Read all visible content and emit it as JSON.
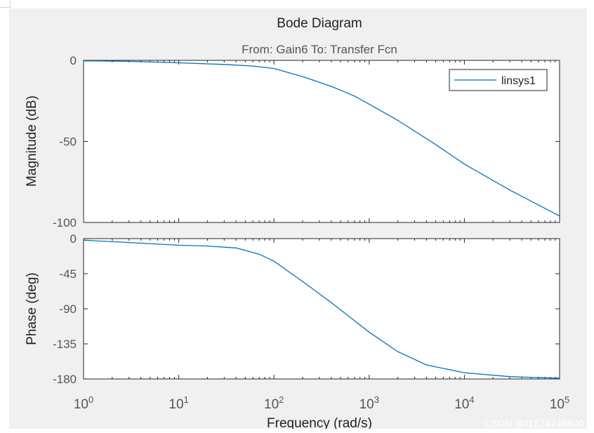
{
  "chart_data": {
    "type": "line",
    "title": "Bode Diagram",
    "subtitle": "From: Gain6  To: Transfer Fcn",
    "xlabel": "Frequency  (rad/s)",
    "xscale": "log",
    "xlim": [
      1,
      100000
    ],
    "x_ticks": [
      1,
      10,
      100,
      1000,
      10000,
      100000
    ],
    "x_tick_labels": [
      {
        "base": "10",
        "exp": "0"
      },
      {
        "base": "10",
        "exp": "1"
      },
      {
        "base": "10",
        "exp": "2"
      },
      {
        "base": "10",
        "exp": "3"
      },
      {
        "base": "10",
        "exp": "4"
      },
      {
        "base": "10",
        "exp": "5"
      }
    ],
    "legend": {
      "entries": [
        "linsys1"
      ],
      "placement": "top-right"
    },
    "series_color": "#0072BD",
    "panels": [
      {
        "name": "magnitude",
        "ylabel": "Magnitude (dB)",
        "ylim": [
          -100,
          0
        ],
        "y_ticks": [
          0,
          -50,
          -100
        ],
        "y_tick_labels": [
          "0",
          "-50",
          "-100"
        ],
        "series": [
          {
            "name": "linsys1",
            "x": [
              1,
              3,
              10,
              30,
              60,
              100,
              200,
              400,
              700,
              1000,
              2000,
              5000,
              10000,
              30000,
              100000
            ],
            "y": [
              -0.3,
              -0.6,
              -1.5,
              -2.5,
              -3.5,
              -5,
              -10,
              -16,
              -22,
              -27,
              -37,
              -52,
              -64,
              -80,
              -96
            ]
          }
        ]
      },
      {
        "name": "phase",
        "ylabel": "Phase (deg)",
        "ylim": [
          -180,
          0
        ],
        "y_ticks": [
          0,
          -45,
          -90,
          -135,
          -180
        ],
        "y_tick_labels": [
          "0",
          "-45",
          "-90",
          "-135",
          "-180"
        ],
        "series": [
          {
            "name": "linsys1",
            "x": [
              1,
              3,
              10,
              20,
              40,
              70,
              100,
              200,
              400,
              1000,
              2000,
              4000,
              10000,
              30000,
              100000
            ],
            "y": [
              -2,
              -5,
              -8.5,
              -9.5,
              -12,
              -20,
              -29,
              -55,
              -82,
              -120,
              -145,
              -162,
              -172,
              -177,
              -179
            ]
          }
        ]
      }
    ]
  },
  "watermark": "CSDN @f1274749800"
}
